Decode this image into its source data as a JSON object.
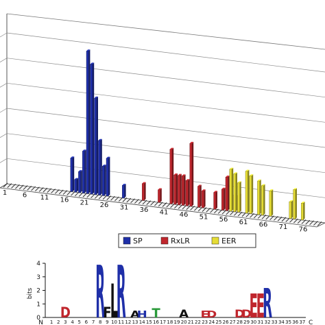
{
  "chart_data": [
    {
      "type": "bar",
      "style": "3d-bar",
      "x_ticks": [
        "1",
        "6",
        "11",
        "16",
        "21",
        "26",
        "31",
        "36",
        "41",
        "46",
        "51",
        "56",
        "61",
        "66",
        "71",
        "76"
      ],
      "grid": true,
      "legend": {
        "placement": "bottom",
        "entries": [
          {
            "name": "SP",
            "color": "#1f2fa8"
          },
          {
            "name": "RxLR",
            "color": "#c0262d"
          },
          {
            "name": "EER",
            "color": "#e5dc35"
          }
        ]
      },
      "ylim": [
        0,
        36
      ],
      "series": [
        {
          "name": "SP",
          "color": "#1f2fa8",
          "points": [
            [
              17,
              8
            ],
            [
              18,
              3
            ],
            [
              19,
              5
            ],
            [
              20,
              10
            ],
            [
              21,
              34
            ],
            [
              22,
              31
            ],
            [
              23,
              23
            ],
            [
              24,
              13
            ],
            [
              25,
              7
            ],
            [
              26,
              9
            ],
            [
              30,
              3
            ]
          ]
        },
        {
          "name": "RxLR",
          "color": "#c0262d",
          "points": [
            [
              35,
              4
            ],
            [
              39,
              3
            ],
            [
              42,
              13
            ],
            [
              43,
              7
            ],
            [
              44,
              7
            ],
            [
              45,
              7
            ],
            [
              46,
              6
            ],
            [
              47,
              15
            ],
            [
              49,
              5
            ],
            [
              50,
              4
            ],
            [
              53,
              4
            ],
            [
              55,
              5
            ],
            [
              56,
              8
            ],
            [
              58,
              4
            ],
            [
              59,
              4
            ]
          ]
        },
        {
          "name": "EER",
          "color": "#e5dc35",
          "points": [
            [
              57,
              10
            ],
            [
              58,
              9
            ],
            [
              59,
              7
            ],
            [
              61,
              10
            ],
            [
              62,
              9
            ],
            [
              64,
              8
            ],
            [
              65,
              7
            ],
            [
              67,
              6
            ],
            [
              72,
              4
            ],
            [
              73,
              7
            ],
            [
              75,
              4
            ]
          ]
        }
      ]
    },
    {
      "type": "sequence-logo",
      "ylabel": "bits",
      "y_ticks": [
        "4",
        "3",
        "2",
        "1",
        "0"
      ],
      "ylim": [
        0,
        4
      ],
      "n_label": "N",
      "c_label": "C",
      "positions": [
        "1",
        "2",
        "3",
        "4",
        "5",
        "6",
        "7",
        "8",
        "9",
        "10",
        "11",
        "12",
        "13",
        "14",
        "15",
        "16",
        "17",
        "18",
        "19",
        "20",
        "21",
        "22",
        "23",
        "24",
        "25",
        "26",
        "27",
        "28",
        "29",
        "30",
        "31",
        "32",
        "33",
        "34",
        "35",
        "36",
        "37"
      ],
      "letters": [
        {
          "pos": 3,
          "char": "D",
          "bits": 0.8,
          "color": "#c0262d"
        },
        {
          "pos": 8,
          "char": "R",
          "bits": 3.9,
          "color": "#1f2fa8"
        },
        {
          "pos": 9,
          "char": "F",
          "bits": 0.8,
          "color": "#111111"
        },
        {
          "pos": 10,
          "char": "L",
          "bits": 2.5,
          "color": "#111111"
        },
        {
          "pos": 11,
          "char": "R",
          "bits": 3.9,
          "color": "#1f2fa8"
        },
        {
          "pos": 13,
          "char": "A",
          "bits": 0.5,
          "color": "#111111"
        },
        {
          "pos": 14,
          "char": "H",
          "bits": 0.5,
          "color": "#1f2fa8"
        },
        {
          "pos": 16,
          "char": "T",
          "bits": 0.7,
          "color": "#2a9a3a"
        },
        {
          "pos": 20,
          "char": "A",
          "bits": 0.6,
          "color": "#111111"
        },
        {
          "pos": 23,
          "char": "E",
          "bits": 0.5,
          "color": "#c0262d"
        },
        {
          "pos": 24,
          "char": "D",
          "bits": 0.5,
          "color": "#c0262d"
        },
        {
          "pos": 28,
          "char": "D",
          "bits": 0.6,
          "color": "#c0262d"
        },
        {
          "pos": 29,
          "char": "D",
          "bits": 0.6,
          "color": "#c0262d"
        },
        {
          "pos": 30,
          "char": "E",
          "bits": 1.8,
          "color": "#c0262d"
        },
        {
          "pos": 31,
          "char": "E",
          "bits": 1.8,
          "color": "#c0262d"
        },
        {
          "pos": 32,
          "char": "R",
          "bits": 2.2,
          "color": "#1f2fa8"
        }
      ]
    }
  ]
}
